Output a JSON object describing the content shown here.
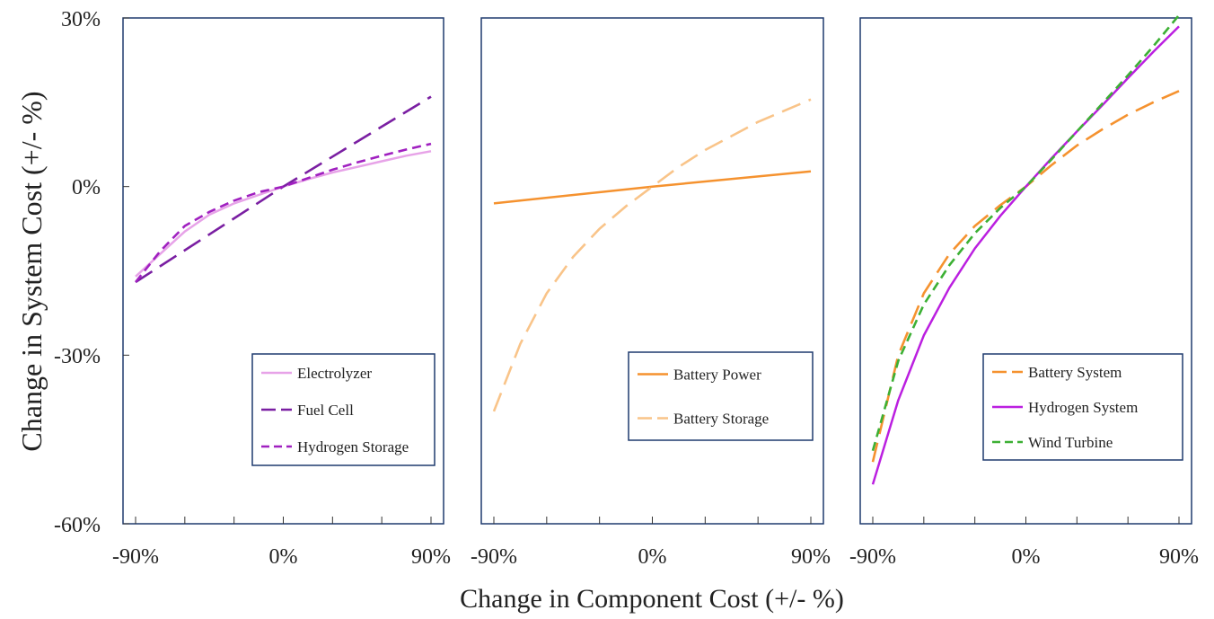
{
  "chart_data": [
    {
      "type": "line",
      "xlim": [
        -90,
        90
      ],
      "ylim": [
        -60,
        30
      ],
      "xticks": [
        "-90%",
        "0%",
        "90%"
      ],
      "series": [
        {
          "name": "Electrolyzer",
          "color": "#e7a3e8",
          "style": "solid",
          "x": [
            -90,
            -75,
            -60,
            -45,
            -30,
            -15,
            0,
            15,
            30,
            45,
            60,
            75,
            90
          ],
          "y": [
            -16,
            -12,
            -8,
            -5,
            -3,
            -1.5,
            0,
            1.3,
            2.5,
            3.5,
            4.5,
            5.5,
            6.3
          ]
        },
        {
          "name": "Fuel Cell",
          "color": "#7a1fa2",
          "style": "longdash",
          "x": [
            -90,
            -45,
            0,
            45,
            90
          ],
          "y": [
            -17,
            -8.5,
            0,
            8,
            16
          ]
        },
        {
          "name": "Hydrogen Storage",
          "color": "#a020c0",
          "style": "dash",
          "x": [
            -90,
            -75,
            -60,
            -45,
            -30,
            -15,
            0,
            15,
            30,
            45,
            60,
            75,
            90
          ],
          "y": [
            -17,
            -11.5,
            -7,
            -4.5,
            -2.5,
            -1,
            0,
            1.5,
            3,
            4.3,
            5.5,
            6.6,
            7.6
          ]
        }
      ]
    },
    {
      "type": "line",
      "xlim": [
        -90,
        90
      ],
      "ylim": [
        -60,
        30
      ],
      "xticks": [
        "-90%",
        "0%",
        "90%"
      ],
      "series": [
        {
          "name": "Battery Power",
          "color": "#f5922f",
          "style": "solid",
          "x": [
            -90,
            0,
            90
          ],
          "y": [
            -3,
            0,
            2.7
          ]
        },
        {
          "name": "Battery Storage",
          "color": "#f9c489",
          "style": "longdash",
          "x": [
            -90,
            -75,
            -60,
            -45,
            -30,
            -15,
            0,
            15,
            30,
            45,
            60,
            75,
            90
          ],
          "y": [
            -40,
            -28,
            -19,
            -12.5,
            -7.5,
            -3.5,
            0,
            3.5,
            6.5,
            9,
            11.5,
            13.5,
            15.5
          ]
        }
      ]
    },
    {
      "type": "line",
      "xlim": [
        -90,
        90
      ],
      "ylim": [
        -60,
        30
      ],
      "xticks": [
        "-90%",
        "0%",
        "90%"
      ],
      "series": [
        {
          "name": "Battery System",
          "color": "#f5922f",
          "style": "longdash",
          "x": [
            -90,
            -75,
            -60,
            -45,
            -30,
            -15,
            0,
            15,
            30,
            45,
            60,
            75,
            90
          ],
          "y": [
            -49,
            -30,
            -19,
            -12,
            -7,
            -3.3,
            0,
            3.8,
            7.3,
            10.2,
            12.8,
            15,
            17
          ]
        },
        {
          "name": "Hydrogen System",
          "color": "#bb1fe0",
          "style": "solid",
          "x": [
            -90,
            -75,
            -60,
            -45,
            -30,
            -15,
            0,
            15,
            30,
            45,
            60,
            75,
            90
          ],
          "y": [
            -53,
            -38,
            -26.5,
            -18,
            -11,
            -5.2,
            0,
            5,
            9.8,
            14.5,
            19.3,
            24,
            28.5
          ]
        },
        {
          "name": "Wind Turbine",
          "color": "#3cb034",
          "style": "dash",
          "x": [
            -90,
            -75,
            -60,
            -45,
            -30,
            -15,
            0,
            15,
            30,
            45,
            60,
            75,
            90
          ],
          "y": [
            -47,
            -31,
            -21,
            -14,
            -8.3,
            -3.8,
            0,
            4.8,
            9.8,
            14.8,
            19.8,
            25,
            30.5
          ]
        }
      ]
    }
  ],
  "axes": {
    "ylabel": "Change in System Cost (+/- %)",
    "xlabel": "Change in Component Cost (+/- %)",
    "yticks": [
      "30%",
      "0%",
      "-30%",
      "-60%"
    ]
  }
}
